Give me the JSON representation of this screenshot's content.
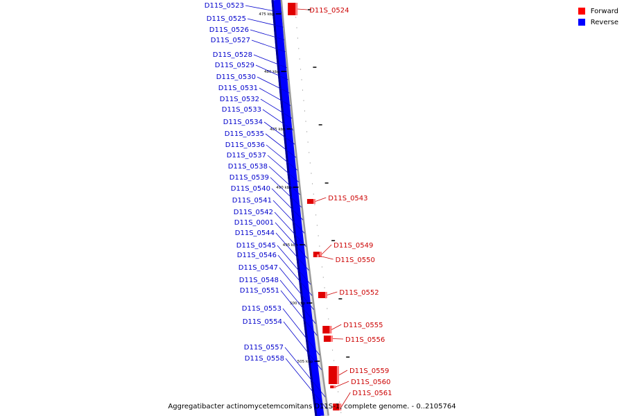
{
  "legend": {
    "items": [
      {
        "label": "Forward",
        "color": "#ff0000"
      },
      {
        "label": "Reverse",
        "color": "#0000ff"
      }
    ]
  },
  "caption": "Aggregatibacter actinomycetemcomitans D11S-1, complete genome. - 0..2105764",
  "scale_labels": [
    "475 kbp",
    "480 kbp",
    "485 kbp",
    "490 kbp",
    "495 kbp",
    "500 kbp",
    "505 kbp"
  ],
  "reverse_genes": [
    "D11S_0523",
    "D11S_0525",
    "D11S_0526",
    "D11S_0527",
    "D11S_0528",
    "D11S_0529",
    "D11S_0530",
    "D11S_0531",
    "D11S_0532",
    "D11S_0533",
    "D11S_0534",
    "D11S_0535",
    "D11S_0536",
    "D11S_0537",
    "D11S_0538",
    "D11S_0539",
    "D11S_0540",
    "D11S_0541",
    "D11S_0542",
    "D11S_0001",
    "D11S_0544",
    "D11S_0545",
    "D11S_0546",
    "D11S_0547",
    "D11S_0548",
    "D11S_0551",
    "D11S_0553",
    "D11S_0554",
    "D11S_0557",
    "D11S_0558"
  ],
  "forward_genes": [
    "D11S_0524",
    "D11S_0543",
    "D11S_0549",
    "D11S_0550",
    "D11S_0552",
    "D11S_0555",
    "D11S_0556",
    "D11S_0559",
    "D11S_0560",
    "D11S_0561"
  ]
}
